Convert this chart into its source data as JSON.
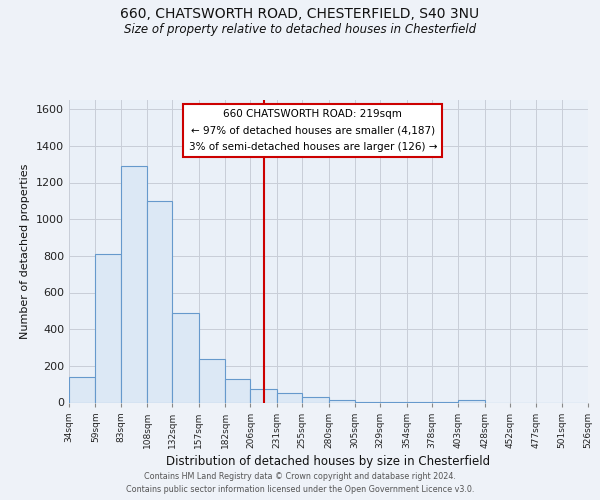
{
  "title1": "660, CHATSWORTH ROAD, CHESTERFIELD, S40 3NU",
  "title2": "Size of property relative to detached houses in Chesterfield",
  "xlabel": "Distribution of detached houses by size in Chesterfield",
  "ylabel": "Number of detached properties",
  "bin_edges": [
    34,
    59,
    83,
    108,
    132,
    157,
    182,
    206,
    231,
    255,
    280,
    305,
    329,
    354,
    378,
    403,
    428,
    452,
    477,
    501,
    526
  ],
  "bar_heights": [
    140,
    810,
    1290,
    1100,
    490,
    240,
    130,
    75,
    50,
    30,
    15,
    5,
    5,
    5,
    5,
    15,
    0,
    0,
    0,
    0
  ],
  "bar_color": "#dce8f5",
  "bar_edge_color": "#6699cc",
  "vline_x": 219,
  "vline_color": "#cc0000",
  "ylim": [
    0,
    1650
  ],
  "yticks": [
    0,
    200,
    400,
    600,
    800,
    1000,
    1200,
    1400,
    1600
  ],
  "annotation_title": "660 CHATSWORTH ROAD: 219sqm",
  "annotation_line1": "← 97% of detached houses are smaller (4,187)",
  "annotation_line2": "3% of semi-detached houses are larger (126) →",
  "footer1": "Contains HM Land Registry data © Crown copyright and database right 2024.",
  "footer2": "Contains public sector information licensed under the Open Government Licence v3.0.",
  "bg_color": "#eef2f8",
  "plot_bg_color": "#eaf0f8",
  "grid_color": "#c8cdd8"
}
